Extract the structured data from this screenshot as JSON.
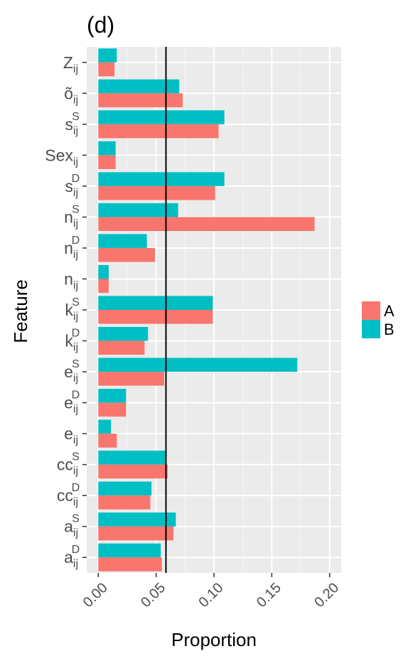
{
  "chart_data": {
    "type": "bar",
    "orientation": "horizontal",
    "title": "(d)",
    "xlabel": "Proportion",
    "ylabel": "Feature",
    "xlim": [
      -0.01,
      0.21
    ],
    "x_ticks": [
      0.0,
      0.05,
      0.1,
      0.15,
      0.2
    ],
    "x_tick_labels": [
      "0.00",
      "0.05",
      "0.10",
      "0.15",
      "0.20"
    ],
    "reference_line": 0.0585,
    "grid": true,
    "legend_position": "right",
    "categories": [
      {
        "main": "Z",
        "sub": "ij",
        "sup": ""
      },
      {
        "main": "õ",
        "sub": "ij",
        "sup": ""
      },
      {
        "main": "s",
        "sub": "ij",
        "sup": "S"
      },
      {
        "main": "Sex",
        "sub": "ij",
        "sup": ""
      },
      {
        "main": "s",
        "sub": "ij",
        "sup": "D"
      },
      {
        "main": "n",
        "sub": "ij",
        "sup": "S"
      },
      {
        "main": "n",
        "sub": "ij",
        "sup": "D"
      },
      {
        "main": "n",
        "sub": "ij",
        "sup": ""
      },
      {
        "main": "k",
        "sub": "ij",
        "sup": "S"
      },
      {
        "main": "k",
        "sub": "ij",
        "sup": "D"
      },
      {
        "main": "e",
        "sub": "ij",
        "sup": "S"
      },
      {
        "main": "e",
        "sub": "ij",
        "sup": "D"
      },
      {
        "main": "e",
        "sub": "ij",
        "sup": ""
      },
      {
        "main": "cc",
        "sub": "ij",
        "sup": "S"
      },
      {
        "main": "cc",
        "sub": "ij",
        "sup": "D"
      },
      {
        "main": "a",
        "sub": "ij",
        "sup": "S"
      },
      {
        "main": "a",
        "sub": "ij",
        "sup": "D"
      }
    ],
    "series": [
      {
        "name": "A",
        "color": "#F8766D",
        "values": [
          0.014,
          0.073,
          0.104,
          0.015,
          0.101,
          0.187,
          0.049,
          0.009,
          0.099,
          0.04,
          0.057,
          0.024,
          0.016,
          0.06,
          0.045,
          0.065,
          0.055
        ]
      },
      {
        "name": "B",
        "color": "#00BFC4",
        "values": [
          0.016,
          0.07,
          0.109,
          0.015,
          0.109,
          0.069,
          0.042,
          0.009,
          0.099,
          0.043,
          0.172,
          0.024,
          0.011,
          0.059,
          0.046,
          0.067,
          0.054
        ]
      }
    ],
    "colors": {
      "panel": "#EBEBEB",
      "grid_major": "#FFFFFF",
      "reference_line": "#000000"
    }
  }
}
